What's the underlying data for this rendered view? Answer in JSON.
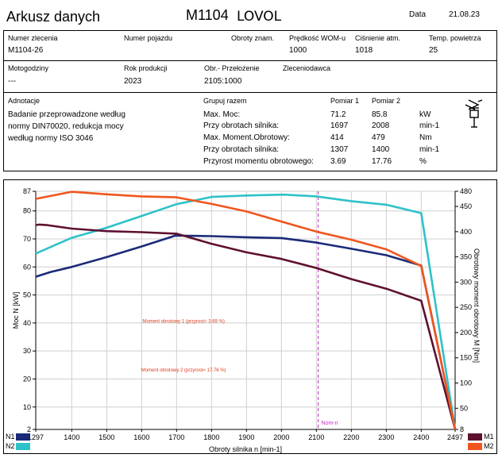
{
  "header": {
    "title": "Arkusz danych",
    "model_code": "M1104",
    "model_brand": "LOVOL",
    "date_label": "Data",
    "date_value": "21.08.23"
  },
  "info_row1": {
    "order_no_label": "Numer zlecenia",
    "order_no_value": "M1104-26",
    "vehicle_no_label": "Numer pojazdu",
    "rpm_label": "Obroty znam.",
    "pto_speed_label": "Prędkość WOM-u",
    "pto_speed_value": "1000",
    "pressure_label": "Ciśnienie atm.",
    "pressure_value": "1018",
    "temp_label": "Temp. powietrza",
    "temp_value": "25"
  },
  "info_row2": {
    "hours_label": "Motogodziny",
    "hours_value": "---",
    "year_label": "Rok produkcji",
    "year_value": "2023",
    "ratio_label": "Obr.- Przełożenie",
    "ratio_value": "2105:1000",
    "client_label": "Zleceniodawca"
  },
  "notes": {
    "label": "Adnotacje",
    "lines": [
      "Badanie przeprowadzone według",
      "normy DIN70020, redukcja mocy",
      "według normy ISO 3046"
    ]
  },
  "results": {
    "group_label": "Grupuj razem",
    "col1_label": "Pomiar 1",
    "col2_label": "Pomiar 2",
    "rows": [
      {
        "name": "Max. Moc:",
        "m1": "71.2",
        "m2": "85.8",
        "unit": "kW"
      },
      {
        "name": "Przy obrotach silnika:",
        "m1": "1697",
        "m2": "2008",
        "unit": "min-1"
      },
      {
        "name": "Max. Moment.Obrotowy:",
        "m1": "414",
        "m2": "479",
        "unit": "Nm"
      },
      {
        "name": "Przy obrotach silnika:",
        "m1": "1307",
        "m2": "1400",
        "unit": "min-1"
      },
      {
        "name": "Przyrost momentu obrotowego:",
        "m1": "3.69",
        "m2": "17.76",
        "unit": "%"
      }
    ]
  },
  "legend": {
    "n1": "N1",
    "n2": "N2",
    "m1": "M1",
    "m2": "M2"
  },
  "colors": {
    "n1": "#1a2a78",
    "n2": "#2ec2c8",
    "m1": "#5e1030",
    "m2": "#f0561e",
    "nom_line": "#c030c0"
  },
  "chart_data": {
    "type": "line",
    "xlabel": "Obroty silnika n [min-1]",
    "ylabel_left": "Moc N [kW]",
    "ylabel_right": "Obrotowy moment obrotowy M [Nm]",
    "xlim": [
      1297,
      2497
    ],
    "ylim_left": [
      2,
      87
    ],
    "ylim_right": [
      8,
      480
    ],
    "x_ticks": [
      "1297",
      "1400",
      "1500",
      "1600",
      "1700",
      "1800",
      "1900",
      "2000",
      "2100",
      "2200",
      "2300",
      "2400",
      "2497"
    ],
    "x_tick_values": [
      1297,
      1400,
      1500,
      1600,
      1700,
      1800,
      1900,
      2000,
      2100,
      2200,
      2300,
      2400,
      2497
    ],
    "y_left_ticks": [
      2,
      10,
      20,
      30,
      40,
      50,
      60,
      70,
      80,
      87
    ],
    "y_right_ticks": [
      8,
      50,
      100,
      150,
      200,
      250,
      300,
      350,
      400,
      450,
      480
    ],
    "nominal_rpm": 2105,
    "nominal_label": "Nom-n",
    "annotations": [
      {
        "text": "Moment obrotowy 1 (przyrost= 3.69 %)",
        "x": 1720,
        "y_right": 220
      },
      {
        "text": "Moment obrotowy 2 (przyrost= 17.76 %)",
        "x": 1720,
        "y_right": 123
      }
    ],
    "series": [
      {
        "name": "N1",
        "axis": "left",
        "x": [
          1297,
          1340,
          1400,
          1500,
          1600,
          1697,
          1800,
          1900,
          2000,
          2100,
          2200,
          2300,
          2400,
          2497
        ],
        "y": [
          56.5,
          58.2,
          60,
          63.5,
          67.3,
          71.2,
          71,
          70.6,
          70.3,
          68.7,
          66.5,
          64.2,
          60.5,
          2
        ]
      },
      {
        "name": "N2",
        "axis": "left",
        "x": [
          1297,
          1400,
          1500,
          1600,
          1700,
          1800,
          1900,
          2008,
          2100,
          2200,
          2300,
          2400,
          2497
        ],
        "y": [
          64.8,
          70.4,
          74,
          78.2,
          82.4,
          85,
          85.5,
          85.8,
          85.2,
          83.5,
          82.2,
          79.2,
          2
        ]
      },
      {
        "name": "M1",
        "axis": "right",
        "x": [
          1297,
          1307,
          1330,
          1400,
          1500,
          1600,
          1700,
          1800,
          1900,
          2000,
          2100,
          2200,
          2300,
          2400,
          2497
        ],
        "y": [
          413,
          414,
          413,
          406,
          401,
          399,
          396,
          376,
          359,
          346,
          328,
          306,
          287,
          263,
          8
        ]
      },
      {
        "name": "M2",
        "axis": "right",
        "x": [
          1297,
          1400,
          1500,
          1600,
          1700,
          1800,
          1900,
          2000,
          2100,
          2200,
          2300,
          2400,
          2497
        ],
        "y": [
          465,
          479,
          474,
          470,
          468,
          455,
          440,
          420,
          400,
          384,
          365,
          332,
          8
        ]
      }
    ]
  }
}
